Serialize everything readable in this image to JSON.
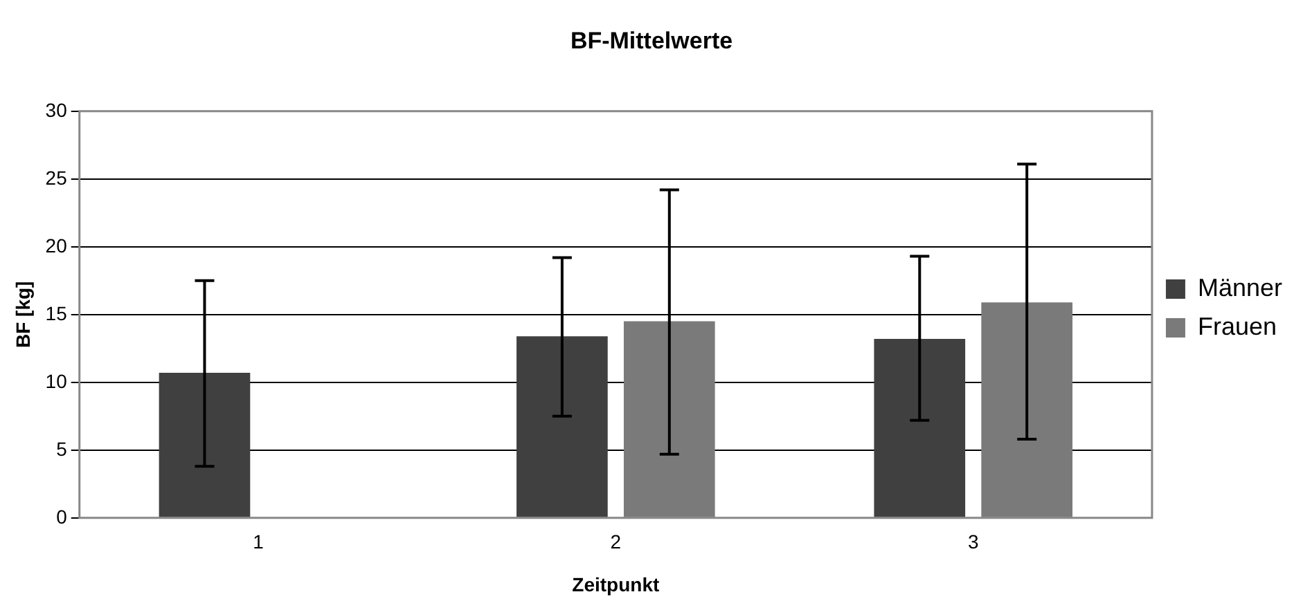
{
  "chart_data": {
    "type": "bar",
    "title": "BF-Mittelwerte",
    "xlabel": "Zeitpunkt",
    "ylabel": "BF [kg]",
    "categories": [
      "1",
      "2",
      "3"
    ],
    "series": [
      {
        "name": "Männer",
        "color": "#404040",
        "values": [
          10.7,
          13.4,
          13.2
        ],
        "errors": [
          [
            3.8,
            17.5
          ],
          [
            7.5,
            19.2
          ],
          [
            7.2,
            19.3
          ]
        ]
      },
      {
        "name": "Frauen",
        "color": "#7a7a7a",
        "values": [
          0,
          14.5,
          15.9
        ],
        "errors": [
          null,
          [
            4.7,
            24.2
          ],
          [
            5.8,
            26.1
          ]
        ]
      }
    ],
    "ylim": [
      0,
      30
    ],
    "yticks": [
      0,
      5,
      10,
      15,
      20,
      25,
      30
    ],
    "grid": "y",
    "legend": "right"
  }
}
